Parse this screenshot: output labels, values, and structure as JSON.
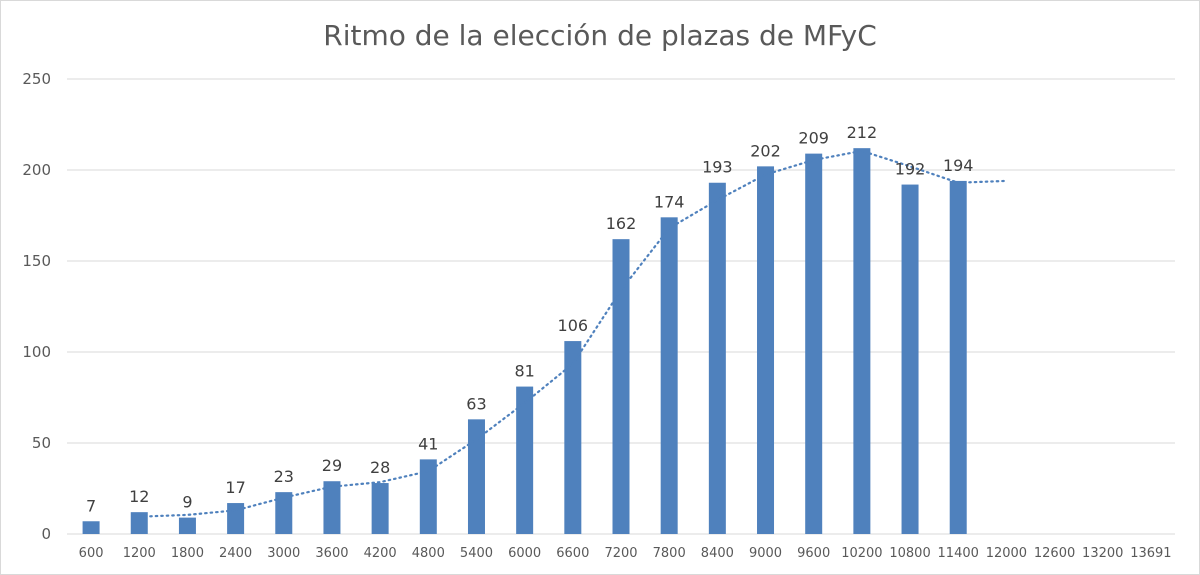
{
  "chart_data": {
    "type": "bar",
    "title": "Ritmo de la elección de plazas de MFyC",
    "xlabel": "",
    "ylabel": "",
    "categories": [
      "600",
      "1200",
      "1800",
      "2400",
      "3000",
      "3600",
      "4200",
      "4800",
      "5400",
      "6000",
      "6600",
      "7200",
      "7800",
      "8400",
      "9000",
      "9600",
      "10200",
      "10800",
      "11400",
      "12000",
      "12600",
      "13200",
      "13691"
    ],
    "series": [
      {
        "values": [
          7,
          12,
          9,
          17,
          23,
          29,
          28,
          41,
          63,
          81,
          106,
          162,
          174,
          193,
          202,
          209,
          212,
          192,
          194,
          null,
          null,
          null,
          null
        ],
        "color": "#4f81bd"
      }
    ],
    "data_labels": true,
    "trendline": {
      "type": "moving-average",
      "style": "dotted",
      "color": "#4f81bd"
    },
    "ylim": [
      0,
      250
    ],
    "yticks": [
      0,
      50,
      100,
      150,
      200,
      250
    ],
    "grid": true,
    "legend": "none"
  }
}
